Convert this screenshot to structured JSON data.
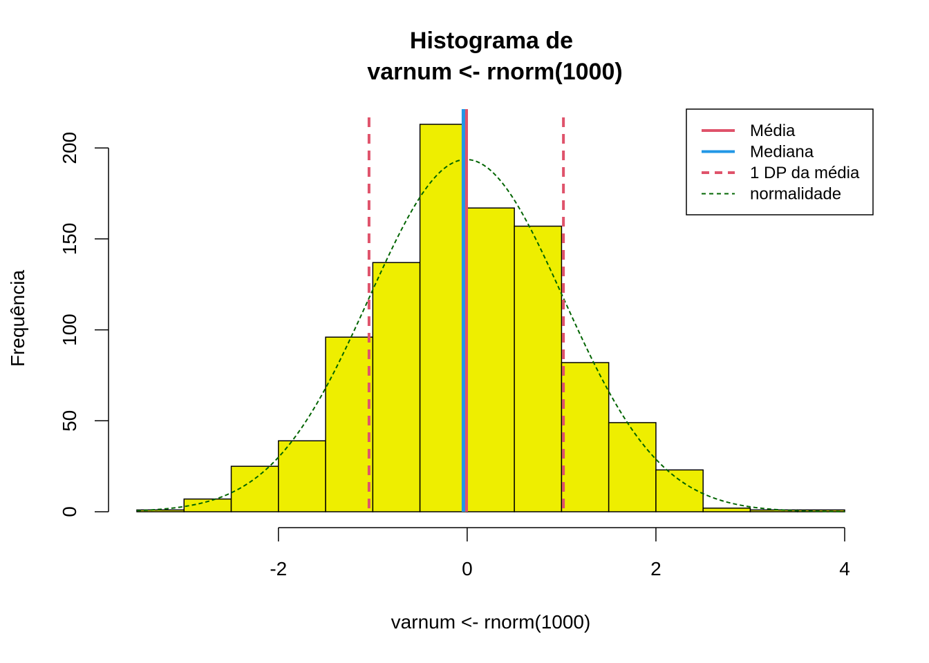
{
  "chart_data": {
    "type": "bar",
    "title": [
      "Histograma de",
      "varnum <- rnorm(1000)"
    ],
    "xlabel": "varnum <- rnorm(1000)",
    "ylabel": "Frequência",
    "bin_edges": [
      -3.5,
      -3.0,
      -2.5,
      -2.0,
      -1.5,
      -1.0,
      -0.5,
      0.0,
      0.5,
      1.0,
      1.5,
      2.0,
      2.5,
      3.0,
      3.5,
      4.0
    ],
    "counts": [
      1,
      7,
      25,
      39,
      96,
      137,
      213,
      167,
      157,
      82,
      49,
      23,
      2,
      1,
      1
    ],
    "xlim": [
      -3.5,
      4.0
    ],
    "ylim": [
      0,
      213
    ],
    "x_ticks": [
      "-2",
      "0",
      "2",
      "4"
    ],
    "y_ticks": [
      "0",
      "50",
      "100",
      "150",
      "200"
    ],
    "mean": -0.01,
    "median": -0.04,
    "sd": 1.03,
    "grid": false,
    "legend_position": "top-right",
    "legend": [
      {
        "label": "Média",
        "style": "solid",
        "color": "#DF536B"
      },
      {
        "label": "Mediana",
        "style": "solid",
        "color": "#2297E6"
      },
      {
        "label": "1 DP da média",
        "style": "dashed",
        "color": "#DF536B"
      },
      {
        "label": "normalidade",
        "style": "dashed",
        "color": "#006400"
      }
    ],
    "colors": {
      "bar_fill": "#EEEE00",
      "bar_stroke": "#000000",
      "mean": "#DF536B",
      "median": "#2297E6",
      "sd": "#DF536B",
      "normal": "#006400"
    }
  }
}
